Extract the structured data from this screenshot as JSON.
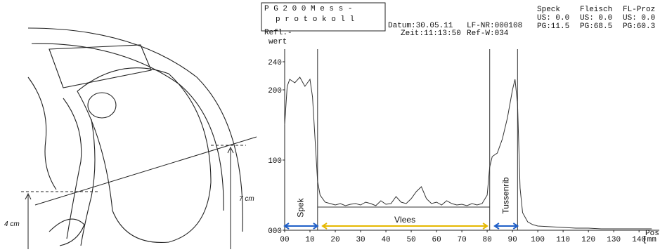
{
  "diagram": {
    "labels": [
      "4 cm",
      "7 cm"
    ]
  },
  "header": {
    "title": [
      "P G 2 0 0   M e s s -",
      "p r o t o k o l l"
    ],
    "subtitle": "Refl.-",
    "date": "Datum:30.05.11",
    "time": "Zeit:11:13:50",
    "lf": "LF-NR:000108",
    "ref": "Ref-W:034",
    "columns": [
      [
        "Speck",
        "US: 0.0",
        "PG:11.5"
      ],
      [
        "Fleisch",
        "US: 0.0",
        "PG:68.5"
      ],
      [
        "FL-Proz",
        "US: 0.0",
        "PG:60.3"
      ]
    ]
  },
  "chart_data": {
    "type": "line",
    "ylabel": "wert",
    "xlabel": "Pos",
    "xunit": "[mm",
    "x": [
      0,
      1,
      2,
      4,
      6,
      8,
      10,
      11,
      12,
      13,
      14,
      16,
      18,
      20,
      22,
      24,
      26,
      28,
      30,
      32,
      34,
      36,
      38,
      40,
      42,
      44,
      46,
      48,
      50,
      52,
      54,
      56,
      58,
      60,
      62,
      64,
      66,
      68,
      70,
      72,
      74,
      76,
      78,
      80,
      81,
      82,
      84,
      86,
      88,
      90,
      91,
      92,
      93,
      94,
      96,
      98,
      100,
      105,
      110,
      115,
      120,
      125,
      130,
      135,
      140,
      145
    ],
    "values": [
      150,
      205,
      215,
      210,
      218,
      205,
      215,
      190,
      130,
      70,
      50,
      40,
      38,
      36,
      38,
      35,
      37,
      38,
      36,
      40,
      38,
      35,
      42,
      37,
      38,
      48,
      40,
      38,
      45,
      55,
      62,
      45,
      38,
      40,
      36,
      42,
      38,
      36,
      37,
      35,
      38,
      36,
      38,
      50,
      90,
      105,
      110,
      130,
      160,
      200,
      215,
      180,
      60,
      25,
      12,
      8,
      6,
      5,
      4,
      3,
      3,
      2,
      2,
      2,
      2,
      2
    ],
    "color": "#333333",
    "xlim": [
      0,
      148
    ],
    "ylim": [
      0,
      240
    ],
    "xticks": [
      {
        "value": 0,
        "label": "00"
      },
      10,
      20,
      30,
      40,
      50,
      60,
      70,
      80,
      90,
      100,
      110,
      120,
      130,
      140
    ],
    "yticks": [
      {
        "value": 0,
        "label": "000"
      },
      100,
      200,
      240
    ],
    "dividers": [
      13,
      81,
      92
    ],
    "baseline": {
      "value": 33,
      "range": [
        13,
        81
      ]
    },
    "regions": [
      {
        "label": "Spek",
        "range": [
          0,
          13
        ],
        "color": "#1f5fc8",
        "vertical": true
      },
      {
        "label": "Vlees",
        "range": [
          15,
          80
        ],
        "color": "#e6b800",
        "vertical": false
      },
      {
        "label": "Tussenrib",
        "range": [
          83,
          92
        ],
        "color": "#1f5fc8",
        "vertical": true
      }
    ]
  }
}
